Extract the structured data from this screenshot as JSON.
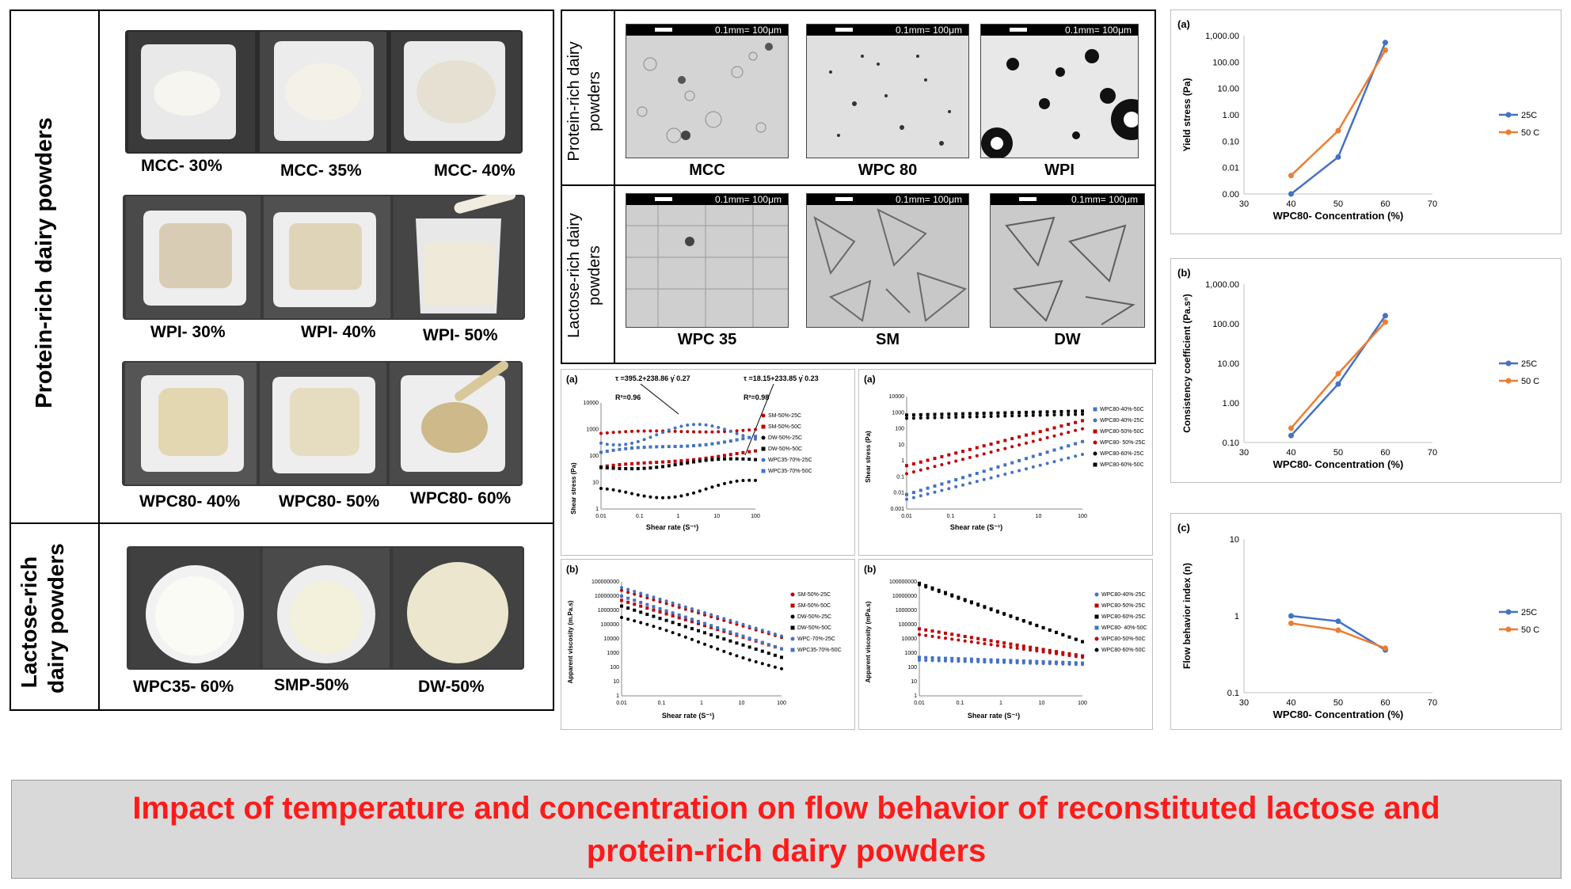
{
  "left_table": {
    "protein_label": "Protein-rich dairy powders",
    "lactose_label_l1": "Lactose-rich",
    "lactose_label_l2": "dairy powders",
    "row1": [
      "MCC- 30%",
      "MCC- 35%",
      "MCC- 40%"
    ],
    "row2": [
      "WPI- 30%",
      "WPI- 40%",
      "WPI- 50%"
    ],
    "row3": [
      "WPC80- 40%",
      "WPC80- 50%",
      "WPC80- 60%"
    ],
    "row4": [
      "WPC35- 60%",
      "SMP-50%",
      "DW-50%"
    ]
  },
  "micrographs": {
    "protein_label_l1": "Protein-rich dairy",
    "protein_label_l2": "powders",
    "lactose_label_l1": "Lactose-rich dairy",
    "lactose_label_l2": "powders",
    "scale": "0.1mm= 100μm",
    "row1": [
      "MCC",
      "WPC 80",
      "WPI"
    ],
    "row2": [
      "WPC 35",
      "SM",
      "DW"
    ]
  },
  "palette": {
    "blue": "#4472c4",
    "orange": "#ed7d31",
    "red": "#c00000",
    "black": "#000000",
    "title_red": "#ff1a1a"
  },
  "rheo_a1": {
    "tag": "(a)",
    "eq1": "τ =395.2+238.86 γ̇ 0.27",
    "r1": "R²=0.96",
    "eq2": "τ =18.15+233.85 γ̇ 0.23",
    "r2": "R²=0.98",
    "ylabel": "Shear stress (Pa)",
    "xlabel": "Shear rate (S⁻¹)",
    "yticks": [
      "10000",
      "1000",
      "100",
      "10",
      "1"
    ],
    "xticks": [
      "0.01",
      "0.1",
      "1",
      "10",
      "100"
    ],
    "legend": [
      "SM-50%-25C",
      "SM-50%-50C",
      "DW-50%-25C",
      "DW-50%-50C",
      "WPC35-70%-25C",
      "WPC35-70%-50C"
    ]
  },
  "rheo_a2": {
    "tag": "(a)",
    "ylabel": "Shear stress (Pa)",
    "xlabel": "Shear rate (S⁻¹)",
    "yticks": [
      "10000",
      "1000",
      "100",
      "10",
      "1",
      "0.1",
      "0.01",
      "0.001"
    ],
    "xticks": [
      "0.01",
      "0.1",
      "1",
      "10",
      "100"
    ],
    "legend": [
      "WPC80-40%-50C",
      "WPC80-40%-25C",
      "WPC80-50%-50C",
      "WPC80- 50%-25C",
      "WPC80-60%-25C",
      "WPC80-60%-50C"
    ]
  },
  "rheo_b1": {
    "tag": "(b)",
    "ylabel": "Apparent viscosity (m.Pa.s)",
    "xlabel": "Shear rate (S⁻¹)",
    "yticks": [
      "100000000",
      "10000000",
      "1000000",
      "100000",
      "10000",
      "1000",
      "100",
      "10",
      "1"
    ],
    "xticks": [
      "0.01",
      "0.1",
      "1",
      "10",
      "100"
    ],
    "legend": [
      "SM-50%-25C",
      "SM-50%-50C",
      "DW-50%-25C",
      "DW-50%-50C",
      "WPC-70%-25C",
      "WPC35-70%-50C"
    ]
  },
  "rheo_b2": {
    "tag": "(b)",
    "ylabel": "Apparent viscosity (mPa.s)",
    "xlabel": "Shear rate (S⁻¹)",
    "yticks": [
      "100000000",
      "10000000",
      "1000000",
      "100000",
      "10000",
      "1000",
      "100",
      "10",
      "1"
    ],
    "xticks": [
      "0.01",
      "0.1",
      "1",
      "10",
      "100"
    ],
    "legend": [
      "WPC80-40%-25C",
      "WPC80-50%-25C",
      "WPC80-60%-25C",
      "WPC80- 40%-50C",
      "WPC80-50%-50C",
      "WPC80-60%-50C"
    ]
  },
  "chart_data": [
    {
      "type": "line",
      "tag": "(a)",
      "xlabel": "WPC80- Concentration (%)",
      "ylabel": "Yield stress (Pa)",
      "yscale": "log",
      "yticks": [
        "1,000.00",
        "100.00",
        "10.00",
        "1.00",
        "0.10",
        "0.01",
        "0.00"
      ],
      "xticks": [
        "30",
        "40",
        "50",
        "60",
        "70"
      ],
      "xlim": [
        30,
        70
      ],
      "ylim_log": [
        0.001,
        1000
      ],
      "x": [
        40,
        50,
        60
      ],
      "series": [
        {
          "name": "25C",
          "values": [
            0.001,
            0.025,
            550
          ]
        },
        {
          "name": "50 C",
          "values": [
            0.005,
            0.25,
            280
          ]
        }
      ],
      "legend_position": "right"
    },
    {
      "type": "line",
      "tag": "(b)",
      "xlabel": "WPC80- Concentration (%)",
      "ylabel": "Consistency coefficient (Pa.sⁿ)",
      "yscale": "log",
      "yticks": [
        "1,000.00",
        "100.00",
        "10.00",
        "1.00",
        "0.10"
      ],
      "xticks": [
        "30",
        "40",
        "50",
        "60",
        "70"
      ],
      "xlim": [
        30,
        70
      ],
      "ylim_log": [
        0.1,
        1000
      ],
      "x": [
        40,
        50,
        60
      ],
      "series": [
        {
          "name": "25C",
          "values": [
            0.15,
            3.0,
            160
          ]
        },
        {
          "name": "50 C",
          "values": [
            0.23,
            5.5,
            110
          ]
        }
      ],
      "legend_position": "right"
    },
    {
      "type": "line",
      "tag": "(c)",
      "xlabel": "WPC80- Concentration (%)",
      "ylabel": "Flow behavior index (n)",
      "yscale": "log",
      "yticks": [
        "10",
        "1",
        "0.1"
      ],
      "xticks": [
        "30",
        "40",
        "50",
        "60",
        "70"
      ],
      "xlim": [
        30,
        70
      ],
      "ylim_log": [
        0.1,
        10
      ],
      "x": [
        40,
        50,
        60
      ],
      "series": [
        {
          "name": "25C",
          "values": [
            1.0,
            0.85,
            0.36
          ]
        },
        {
          "name": "50 C",
          "values": [
            0.8,
            0.65,
            0.38
          ]
        }
      ],
      "legend_position": "right"
    }
  ],
  "banner": {
    "line1": "Impact of temperature and concentration on flow behavior of reconstituted lactose and",
    "line2": "protein-rich dairy powders"
  }
}
